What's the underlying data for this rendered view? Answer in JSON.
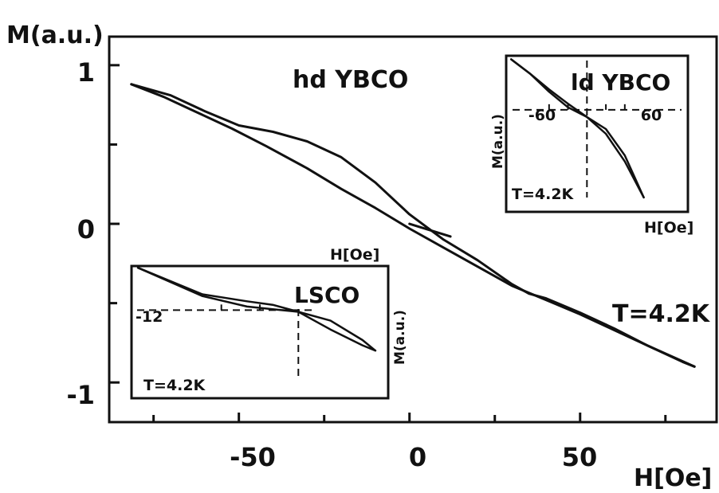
{
  "colors": {
    "ink": "#111111",
    "background": "#ffffff"
  },
  "chart_data": [
    {
      "type": "line",
      "title": "hd YBCO",
      "xlabel": "H[Oe]",
      "ylabel": "M(a.u.)",
      "xlim": [
        -88,
        90
      ],
      "ylim": [
        -1.25,
        1.18
      ],
      "x_ticks": [
        -50,
        0,
        50
      ],
      "y_ticks": [
        1,
        0,
        -1
      ],
      "x_tick_labels": [
        "-50",
        "0",
        "50"
      ],
      "y_tick_labels": [
        "1",
        "0",
        "-1"
      ],
      "annotations": [
        "T=4.2K"
      ],
      "grid": false,
      "series": [
        {
          "x": [
            -81.5,
            -72,
            -63,
            -52,
            -42,
            -30,
            -20,
            -10,
            0,
            10,
            20,
            30,
            40,
            50,
            60,
            70,
            80,
            83.5
          ],
          "y": [
            0.88,
            0.8,
            0.71,
            0.6,
            0.49,
            0.35,
            0.22,
            0.1,
            -0.03,
            -0.15,
            -0.27,
            -0.39,
            -0.48,
            -0.57,
            -0.67,
            -0.77,
            -0.87,
            -0.9
          ]
        },
        {
          "x": [
            -81.5,
            -70,
            -60,
            -50,
            -40,
            -30,
            -20,
            -10,
            0,
            10,
            20,
            30,
            35,
            40,
            50,
            60,
            70,
            83.5
          ],
          "y": [
            0.88,
            0.81,
            0.71,
            0.62,
            0.58,
            0.52,
            0.42,
            0.26,
            0.06,
            -0.1,
            -0.23,
            -0.38,
            -0.44,
            -0.47,
            -0.56,
            -0.66,
            -0.77,
            -0.9
          ]
        }
      ],
      "segment": {
        "x": [
          0,
          12
        ],
        "y": [
          0.0,
          -0.08
        ]
      }
    },
    {
      "type": "line",
      "title": "ld YBCO",
      "xlabel": "H[Oe]",
      "ylabel": "M(a.u.)",
      "xlim": [
        -128,
        160
      ],
      "ylim": [
        -0.85,
        0.45
      ],
      "x_tick_labels": [
        "-60",
        "60"
      ],
      "x_ticks": [
        -60,
        60
      ],
      "annotations": [
        "T=4.2K"
      ],
      "series": [
        {
          "x": [
            -120,
            -90,
            -60,
            -30,
            0,
            30,
            60,
            90
          ],
          "y": [
            0.42,
            0.3,
            0.17,
            0.05,
            -0.06,
            -0.2,
            -0.43,
            -0.73
          ]
        },
        {
          "x": [
            -120,
            -90,
            -60,
            -30,
            0,
            30,
            60,
            90
          ],
          "y": [
            0.42,
            0.3,
            0.15,
            0.02,
            -0.06,
            -0.16,
            -0.38,
            -0.73
          ]
        }
      ]
    },
    {
      "type": "line",
      "title": "LSCO",
      "xlabel": "H[Oe]",
      "ylabel": "M(a.u.)",
      "xlim": [
        -26,
        14
      ],
      "ylim": [
        -0.5,
        0.25
      ],
      "x_tick_labels": [
        "-12"
      ],
      "x_ticks": [
        -12
      ],
      "annotations": [
        "T=4.2K"
      ],
      "series": [
        {
          "x": [
            -25,
            -15,
            -8,
            -4,
            0,
            5,
            10,
            12
          ],
          "y": [
            0.24,
            0.08,
            0.02,
            0.005,
            -0.01,
            -0.06,
            -0.17,
            -0.23
          ]
        },
        {
          "x": [
            -25,
            -15,
            -8,
            -4,
            0,
            5,
            10,
            12
          ],
          "y": [
            0.24,
            0.09,
            0.05,
            0.03,
            -0.01,
            -0.11,
            -0.2,
            -0.23
          ]
        }
      ]
    }
  ]
}
